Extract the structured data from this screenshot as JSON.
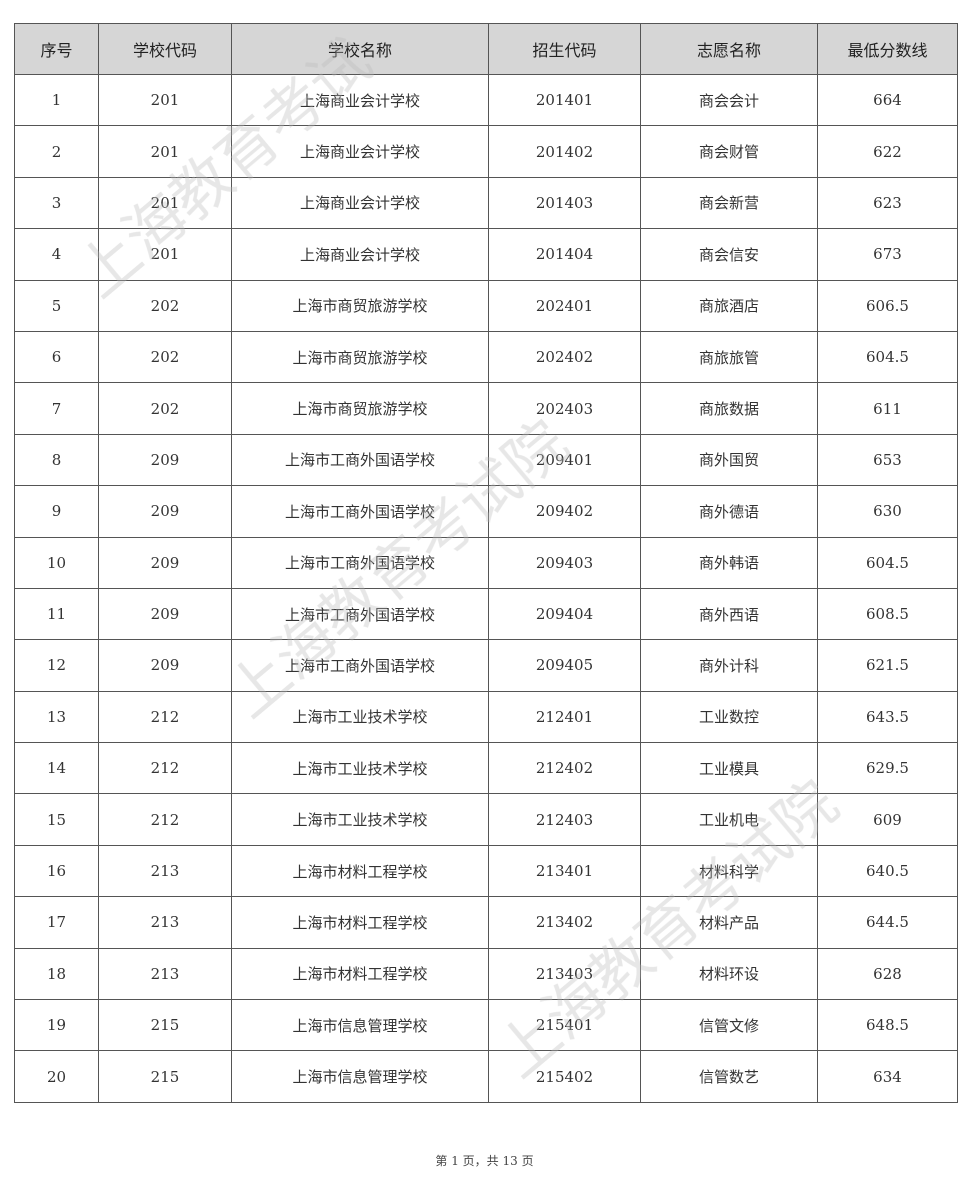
{
  "watermark": "上海教育考试院",
  "table": {
    "headers": [
      "序号",
      "学校代码",
      "学校名称",
      "招生代码",
      "志愿名称",
      "最低分数线"
    ],
    "rows": [
      [
        "1",
        "201",
        "上海商业会计学校",
        "201401",
        "商会会计",
        "664"
      ],
      [
        "2",
        "201",
        "上海商业会计学校",
        "201402",
        "商会财管",
        "622"
      ],
      [
        "3",
        "201",
        "上海商业会计学校",
        "201403",
        "商会新营",
        "623"
      ],
      [
        "4",
        "201",
        "上海商业会计学校",
        "201404",
        "商会信安",
        "673"
      ],
      [
        "5",
        "202",
        "上海市商贸旅游学校",
        "202401",
        "商旅酒店",
        "606.5"
      ],
      [
        "6",
        "202",
        "上海市商贸旅游学校",
        "202402",
        "商旅旅管",
        "604.5"
      ],
      [
        "7",
        "202",
        "上海市商贸旅游学校",
        "202403",
        "商旅数据",
        "611"
      ],
      [
        "8",
        "209",
        "上海市工商外国语学校",
        "209401",
        "商外国贸",
        "653"
      ],
      [
        "9",
        "209",
        "上海市工商外国语学校",
        "209402",
        "商外德语",
        "630"
      ],
      [
        "10",
        "209",
        "上海市工商外国语学校",
        "209403",
        "商外韩语",
        "604.5"
      ],
      [
        "11",
        "209",
        "上海市工商外国语学校",
        "209404",
        "商外西语",
        "608.5"
      ],
      [
        "12",
        "209",
        "上海市工商外国语学校",
        "209405",
        "商外计科",
        "621.5"
      ],
      [
        "13",
        "212",
        "上海市工业技术学校",
        "212401",
        "工业数控",
        "643.5"
      ],
      [
        "14",
        "212",
        "上海市工业技术学校",
        "212402",
        "工业模具",
        "629.5"
      ],
      [
        "15",
        "212",
        "上海市工业技术学校",
        "212403",
        "工业机电",
        "609"
      ],
      [
        "16",
        "213",
        "上海市材料工程学校",
        "213401",
        "材料科学",
        "640.5"
      ],
      [
        "17",
        "213",
        "上海市材料工程学校",
        "213402",
        "材料产品",
        "644.5"
      ],
      [
        "18",
        "213",
        "上海市材料工程学校",
        "213403",
        "材料环设",
        "628"
      ],
      [
        "19",
        "215",
        "上海市信息管理学校",
        "215401",
        "信管文修",
        "648.5"
      ],
      [
        "20",
        "215",
        "上海市信息管理学校",
        "215402",
        "信管数艺",
        "634"
      ]
    ]
  },
  "footer": "第 1 页，共 13 页"
}
